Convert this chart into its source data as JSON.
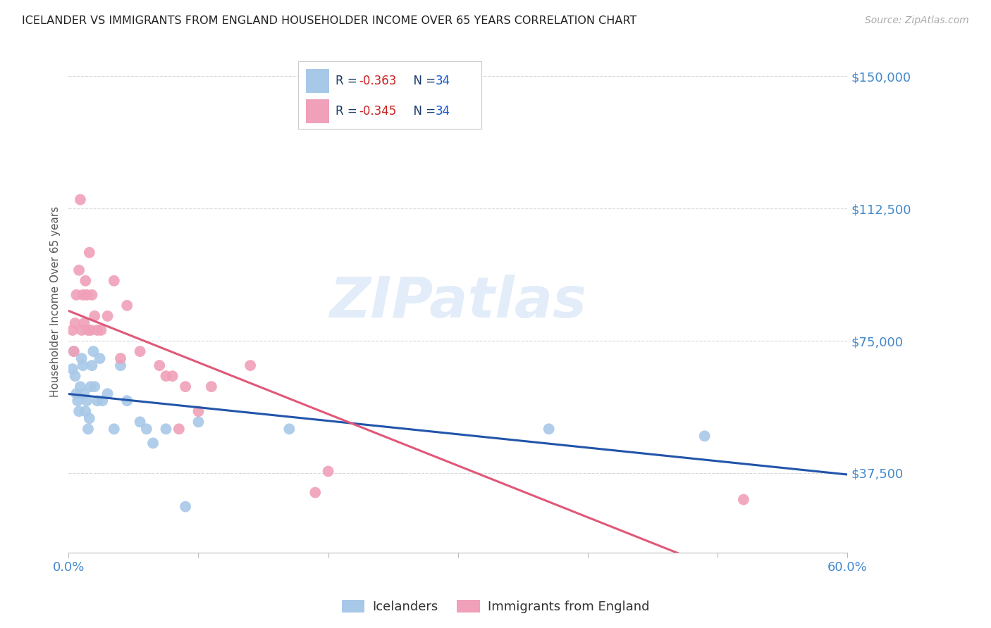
{
  "title": "ICELANDER VS IMMIGRANTS FROM ENGLAND HOUSEHOLDER INCOME OVER 65 YEARS CORRELATION CHART",
  "source": "Source: ZipAtlas.com",
  "ylabel": "Householder Income Over 65 years",
  "watermark": "ZIPatlas",
  "ylim": [
    15000,
    157000
  ],
  "xlim": [
    0.0,
    0.6
  ],
  "yticks": [
    37500,
    75000,
    112500,
    150000
  ],
  "ytick_labels": [
    "$37,500",
    "$75,000",
    "$112,500",
    "$150,000"
  ],
  "series_blue": {
    "label": "Icelanders",
    "R": "-0.363",
    "N": "34",
    "color": "#a8c8e8",
    "line_color": "#2255aa",
    "x": [
      0.003,
      0.004,
      0.005,
      0.006,
      0.007,
      0.008,
      0.009,
      0.01,
      0.011,
      0.012,
      0.013,
      0.014,
      0.015,
      0.016,
      0.017,
      0.018,
      0.019,
      0.02,
      0.022,
      0.024,
      0.026,
      0.03,
      0.035,
      0.04,
      0.045,
      0.055,
      0.06,
      0.065,
      0.075,
      0.09,
      0.1,
      0.17,
      0.37,
      0.49
    ],
    "y": [
      67000,
      72000,
      65000,
      60000,
      58000,
      55000,
      62000,
      70000,
      68000,
      60000,
      55000,
      58000,
      50000,
      53000,
      62000,
      68000,
      72000,
      62000,
      58000,
      70000,
      58000,
      60000,
      50000,
      68000,
      58000,
      52000,
      50000,
      46000,
      50000,
      28000,
      52000,
      50000,
      50000,
      48000
    ]
  },
  "series_pink": {
    "label": "Immigrants from England",
    "R": "-0.345",
    "N": "34",
    "color": "#f0a0b8",
    "line_color": "#e05878",
    "x": [
      0.003,
      0.004,
      0.005,
      0.006,
      0.008,
      0.009,
      0.01,
      0.011,
      0.012,
      0.013,
      0.014,
      0.015,
      0.016,
      0.017,
      0.018,
      0.02,
      0.022,
      0.025,
      0.03,
      0.035,
      0.04,
      0.045,
      0.055,
      0.07,
      0.075,
      0.08,
      0.085,
      0.09,
      0.1,
      0.11,
      0.14,
      0.19,
      0.2,
      0.52
    ],
    "y": [
      78000,
      72000,
      80000,
      88000,
      95000,
      115000,
      78000,
      88000,
      80000,
      92000,
      88000,
      78000,
      100000,
      78000,
      88000,
      82000,
      78000,
      78000,
      82000,
      92000,
      70000,
      85000,
      72000,
      68000,
      65000,
      65000,
      50000,
      62000,
      55000,
      62000,
      68000,
      32000,
      38000,
      30000
    ]
  },
  "background_color": "#ffffff",
  "grid_color": "#d8d8d8",
  "title_color": "#222222",
  "axis_label_color": "#4488cc",
  "legend_text_color": "#1a3a6a",
  "legend_value_color": "#1a3a6a"
}
